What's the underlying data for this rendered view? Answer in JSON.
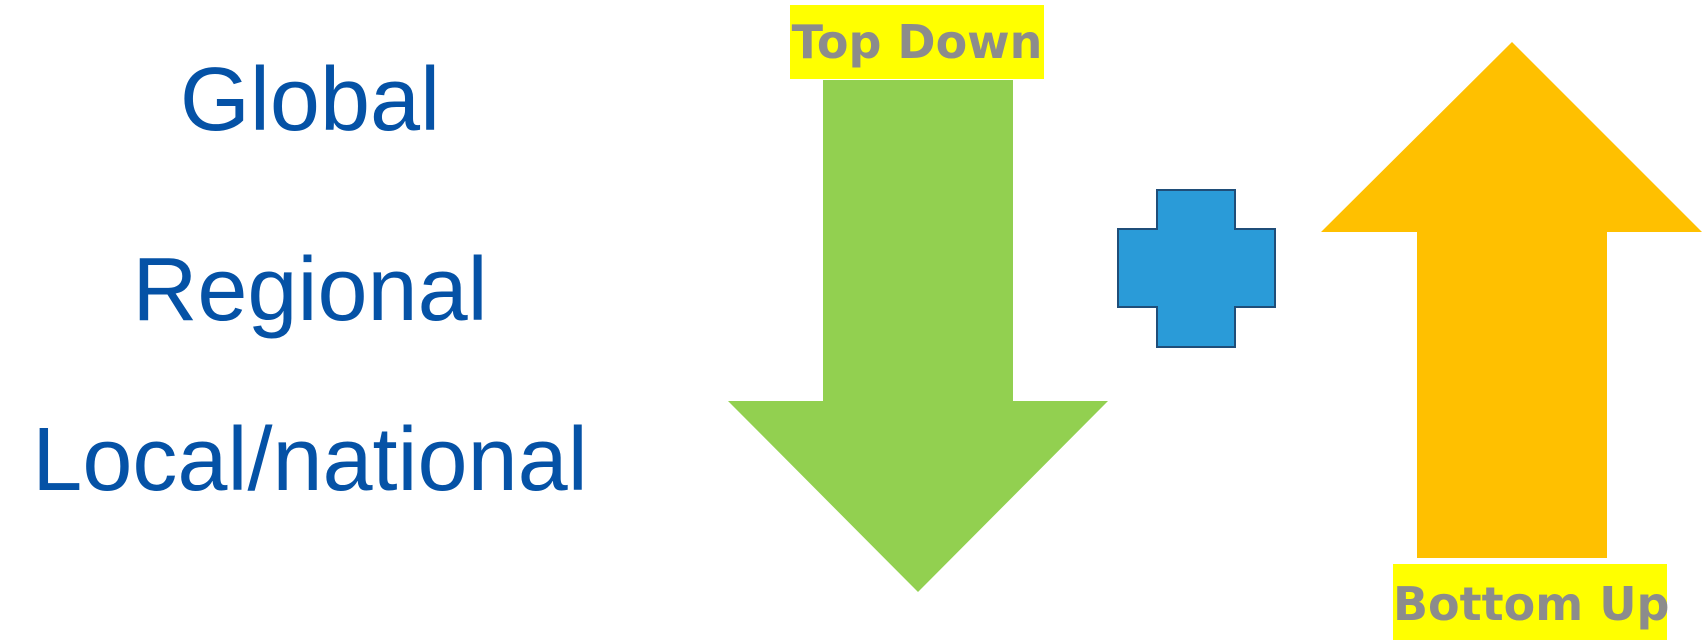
{
  "levels": {
    "global": "Global",
    "regional": "Regional",
    "local": "Local/national"
  },
  "top_down": {
    "label": "Top Down",
    "arrow_color": "#92D050",
    "label_background": "#FFFF00",
    "label_color": "#8C8C8C"
  },
  "combine": {
    "icon": "plus-icon",
    "color": "#2A9BD8",
    "border": "#1F4E79"
  },
  "bottom_up": {
    "label": "Bottom Up",
    "arrow_color": "#FFC000",
    "label_background": "#FFFF00",
    "label_color": "#8C8C8C"
  },
  "text_color": "#0552A6"
}
